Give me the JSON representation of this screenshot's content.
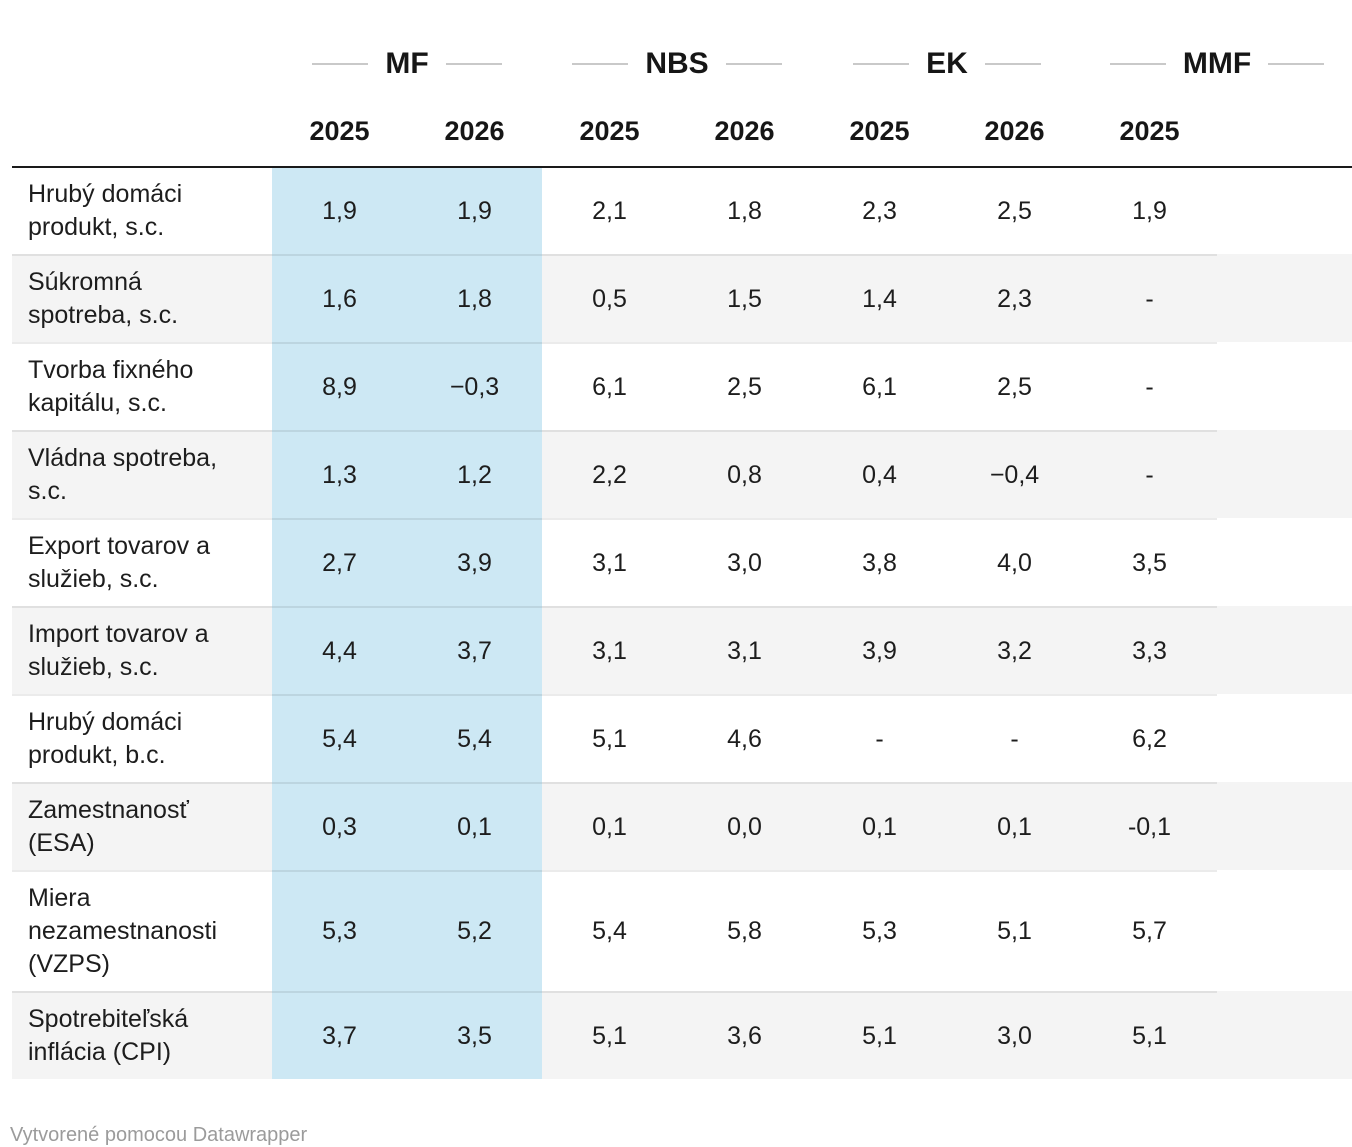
{
  "table": {
    "groups": [
      {
        "label": "MF",
        "years": [
          "2025",
          "2026"
        ],
        "highlight": true
      },
      {
        "label": "NBS",
        "years": [
          "2025",
          "2026"
        ],
        "highlight": false
      },
      {
        "label": "EK",
        "years": [
          "2025",
          "2026"
        ],
        "highlight": false
      },
      {
        "label": "MMF",
        "years": [
          "2025"
        ],
        "highlight": false,
        "clipped": true
      }
    ],
    "rows": [
      {
        "label": "Hrubý domáci\nprodukt, s.c.",
        "values": [
          "1,9",
          "1,9",
          "2,1",
          "1,8",
          "2,3",
          "2,5",
          "1,9"
        ]
      },
      {
        "label": "Súkromná\nspotreba, s.c.",
        "values": [
          "1,6",
          "1,8",
          "0,5",
          "1,5",
          "1,4",
          "2,3",
          "-"
        ]
      },
      {
        "label": "Tvorba fixného\nkapitálu, s.c.",
        "values": [
          "8,9",
          "−0,3",
          "6,1",
          "2,5",
          "6,1",
          "2,5",
          "-"
        ]
      },
      {
        "label": "Vládna spotreba,\ns.c.",
        "values": [
          "1,3",
          "1,2",
          "2,2",
          "0,8",
          "0,4",
          "−0,4",
          "-"
        ]
      },
      {
        "label": "Export tovarov a\nslužieb, s.c.",
        "values": [
          "2,7",
          "3,9",
          "3,1",
          "3,0",
          "3,8",
          "4,0",
          "3,5"
        ]
      },
      {
        "label": "Import tovarov a\nslužieb, s.c.",
        "values": [
          "4,4",
          "3,7",
          "3,1",
          "3,1",
          "3,9",
          "3,2",
          "3,3"
        ]
      },
      {
        "label": "Hrubý domáci\nprodukt, b.c.",
        "values": [
          "5,4",
          "5,4",
          "5,1",
          "4,6",
          "-",
          "-",
          "6,2"
        ]
      },
      {
        "label": "Zamestnanosť\n(ESA)",
        "values": [
          "0,3",
          "0,1",
          "0,1",
          "0,0",
          "0,1",
          "0,1",
          "-0,1"
        ]
      },
      {
        "label": "Miera\nnezamestnanosti\n(VZPS)",
        "values": [
          "5,3",
          "5,2",
          "5,4",
          "5,8",
          "5,3",
          "5,1",
          "5,7"
        ]
      },
      {
        "label": "Spotrebiteľská\ninflácia (CPI)",
        "values": [
          "3,7",
          "3,5",
          "5,1",
          "3,6",
          "5,1",
          "3,0",
          "5,1"
        ]
      }
    ]
  },
  "footer": {
    "attribution": "Vytvorené pomocou Datawrapper"
  },
  "colors": {
    "highlight": "#cde8f4",
    "row_alternate": "#f4f4f4",
    "header_rule": "#1a1a1a",
    "group_dash": "#c9c9c9",
    "text": "#1d1d1d",
    "footer_text": "#9b9b9b"
  },
  "chart_data": {
    "type": "table",
    "title": "",
    "column_groups": [
      "MF",
      "NBS",
      "EK",
      "MMF"
    ],
    "columns": [
      "MF 2025",
      "MF 2026",
      "NBS 2025",
      "NBS 2026",
      "EK 2025",
      "EK 2026",
      "MMF 2025"
    ],
    "row_labels": [
      "Hrubý domáci produkt, s.c.",
      "Súkromná spotreba, s.c.",
      "Tvorba fixného kapitálu, s.c.",
      "Vládna spotreba, s.c.",
      "Export tovarov a služieb, s.c.",
      "Import tovarov a služieb, s.c.",
      "Hrubý domáci produkt, b.c.",
      "Zamestnanosť (ESA)",
      "Miera nezamestnanosti (VZPS)",
      "Spotrebiteľská inflácia (CPI)"
    ],
    "values": [
      [
        1.9,
        1.9,
        2.1,
        1.8,
        2.3,
        2.5,
        1.9
      ],
      [
        1.6,
        1.8,
        0.5,
        1.5,
        1.4,
        2.3,
        null
      ],
      [
        8.9,
        -0.3,
        6.1,
        2.5,
        6.1,
        2.5,
        null
      ],
      [
        1.3,
        1.2,
        2.2,
        0.8,
        0.4,
        -0.4,
        null
      ],
      [
        2.7,
        3.9,
        3.1,
        3.0,
        3.8,
        4.0,
        3.5
      ],
      [
        4.4,
        3.7,
        3.1,
        3.1,
        3.9,
        3.2,
        3.3
      ],
      [
        5.4,
        5.4,
        5.1,
        4.6,
        null,
        null,
        6.2
      ],
      [
        0.3,
        0.1,
        0.1,
        0.0,
        0.1,
        0.1,
        -0.1
      ],
      [
        5.3,
        5.2,
        5.4,
        5.8,
        5.3,
        5.1,
        5.7
      ],
      [
        3.7,
        3.5,
        5.1,
        3.6,
        5.1,
        3.0,
        5.1
      ]
    ],
    "notes": "Decimal comma formatting; '-' means no value. MF 2025/2026 columns highlighted light blue. MMF group clipped at right image edge.",
    "legend_position": "none",
    "grid": "horizontal row dividers"
  }
}
